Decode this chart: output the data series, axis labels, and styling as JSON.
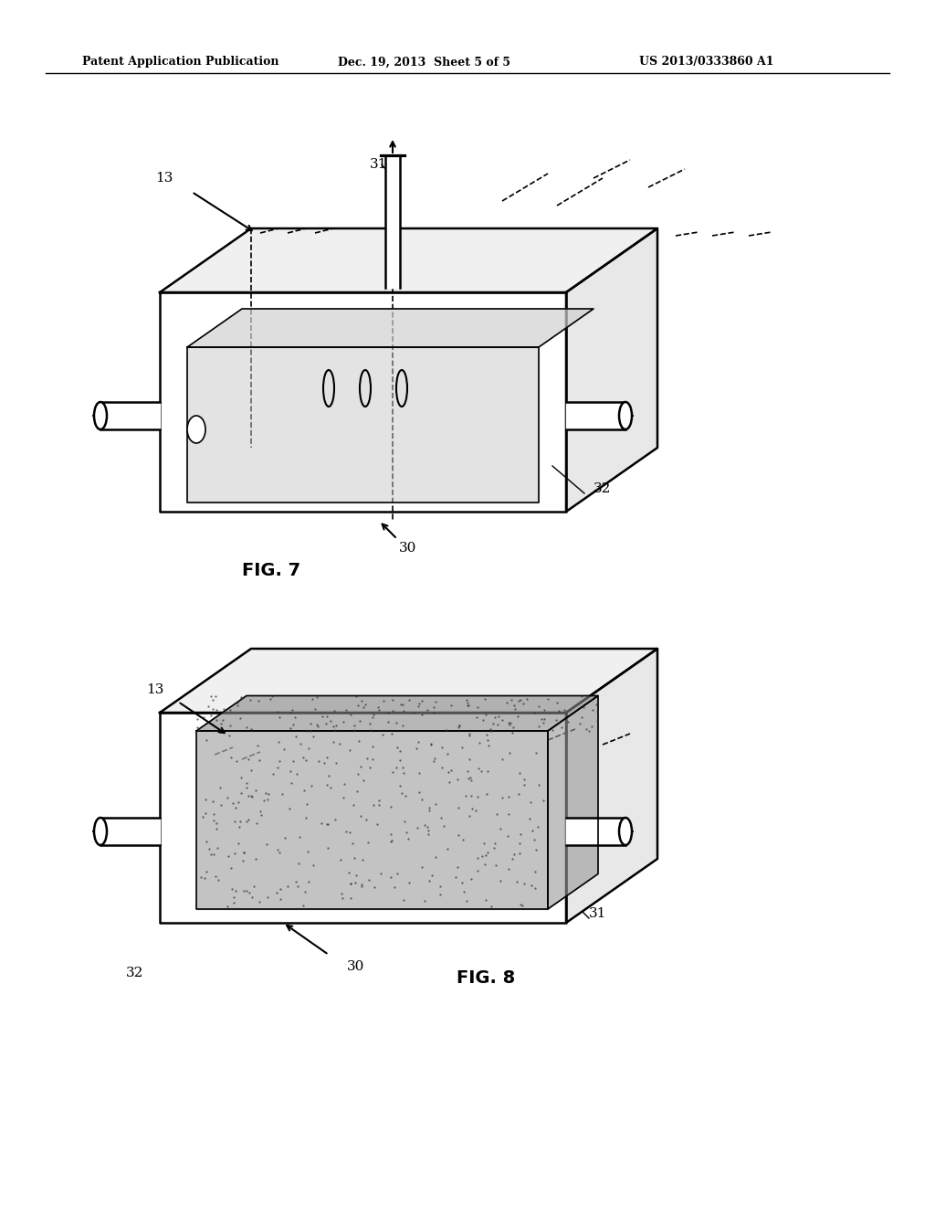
{
  "bg_color": "#ffffff",
  "header_left": "Patent Application Publication",
  "header_mid": "Dec. 19, 2013  Sheet 5 of 5",
  "header_right": "US 2013/0333860 A1",
  "fig7_label": "FIG. 7",
  "fig8_label": "FIG. 8",
  "label_13": "13",
  "label_30": "30",
  "label_31": "31",
  "label_32": "32"
}
